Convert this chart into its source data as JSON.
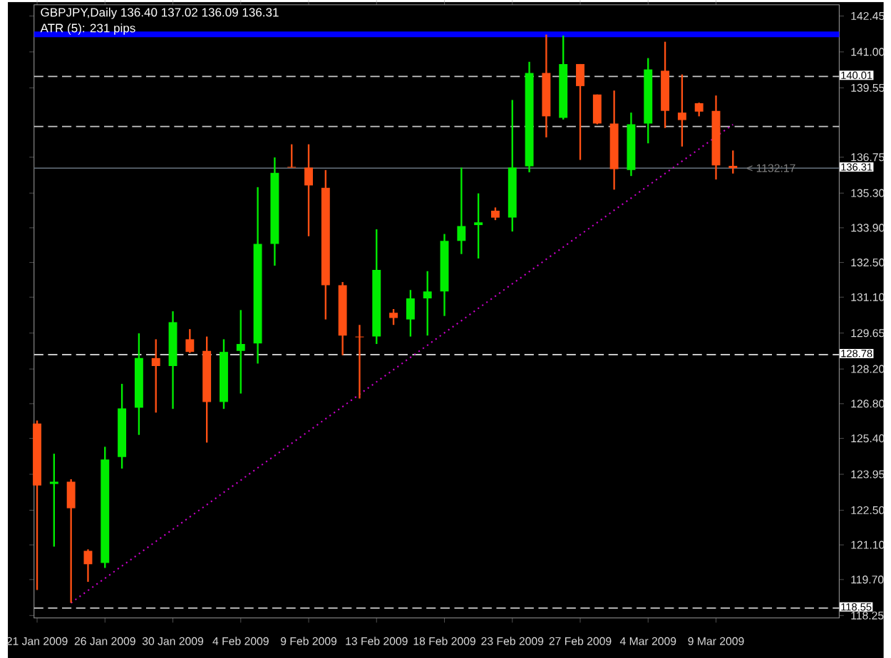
{
  "chart_data": {
    "type": "candlestick",
    "title": "GBPJPY,Daily 136.40 137.02 136.09 136.31",
    "subtitle": "ATR (5): 231 pips",
    "categories": [
      "21 Jan 2009",
      null,
      null,
      null,
      "26 Jan 2009",
      null,
      null,
      null,
      "30 Jan 2009",
      null,
      null,
      null,
      "4 Feb 2009",
      null,
      null,
      null,
      "9 Feb 2009",
      null,
      null,
      null,
      "13 Feb 2009",
      null,
      null,
      null,
      "18 Feb 2009",
      null,
      null,
      null,
      "23 Feb 2009",
      null,
      null,
      null,
      "27 Feb 2009",
      null,
      null,
      null,
      "4 Mar 2009",
      null,
      null,
      null,
      "9 Mar 2009",
      null
    ],
    "ohlc": [
      [
        126.0,
        126.12,
        119.28,
        123.5
      ],
      [
        123.56,
        124.78,
        121.03,
        123.65
      ],
      [
        123.65,
        123.75,
        118.76,
        122.58
      ],
      [
        120.86,
        120.92,
        119.61,
        120.32
      ],
      [
        120.37,
        125.06,
        120.17,
        124.55
      ],
      [
        124.65,
        127.6,
        124.18,
        126.61
      ],
      [
        126.64,
        129.64,
        125.54,
        128.64
      ],
      [
        128.64,
        129.4,
        126.44,
        128.32
      ],
      [
        128.32,
        130.53,
        126.59,
        130.09
      ],
      [
        129.4,
        129.81,
        128.85,
        128.89
      ],
      [
        128.93,
        129.51,
        125.23,
        126.87
      ],
      [
        126.87,
        129.4,
        126.59,
        128.89
      ],
      [
        128.93,
        130.58,
        127.21,
        129.21
      ],
      [
        129.23,
        135.54,
        128.42,
        133.25
      ],
      [
        133.25,
        136.74,
        132.37,
        136.12
      ],
      [
        136.36,
        137.27,
        136.33,
        136.33
      ],
      [
        136.33,
        137.27,
        133.56,
        135.61
      ],
      [
        135.51,
        136.23,
        130.2,
        131.58
      ],
      [
        131.58,
        131.71,
        128.76,
        129.55
      ],
      [
        129.51,
        129.98,
        127.01,
        129.48
      ],
      [
        129.51,
        133.84,
        129.21,
        132.2
      ],
      [
        130.47,
        130.62,
        129.98,
        130.26
      ],
      [
        130.2,
        131.39,
        129.51,
        131.05
      ],
      [
        131.05,
        132.15,
        129.55,
        131.33
      ],
      [
        131.33,
        133.65,
        130.34,
        133.37
      ],
      [
        133.37,
        136.33,
        132.84,
        133.97
      ],
      [
        134.01,
        135.29,
        132.66,
        134.12
      ],
      [
        134.59,
        134.72,
        134.21,
        134.31
      ],
      [
        134.31,
        139.06,
        133.75,
        136.33
      ],
      [
        136.38,
        140.6,
        136.14,
        140.15
      ],
      [
        140.15,
        141.7,
        137.55,
        138.4
      ],
      [
        138.34,
        141.66,
        138.27,
        140.51
      ],
      [
        140.51,
        140.51,
        136.64,
        139.62
      ],
      [
        139.28,
        139.28,
        138.08,
        138.11
      ],
      [
        138.11,
        139.44,
        135.44,
        136.27
      ],
      [
        136.23,
        138.55,
        135.99,
        138.08
      ],
      [
        138.11,
        140.75,
        137.31,
        140.29
      ],
      [
        140.24,
        141.41,
        137.93,
        138.62
      ],
      [
        138.55,
        140.09,
        137.18,
        138.25
      ],
      [
        138.93,
        138.95,
        138.4,
        138.59
      ],
      [
        138.62,
        139.24,
        135.85,
        136.42
      ],
      [
        136.4,
        137.02,
        136.09,
        136.31
      ]
    ],
    "colors": [
      "#ff5014",
      "#00ee00",
      "#ff5014",
      "#ff5014",
      "#00ee00",
      "#00ee00",
      "#00ee00",
      "#ff5014",
      "#00ee00",
      "#ff5014",
      "#ff5014",
      "#00ee00",
      "#00ee00",
      "#00ee00",
      "#00ee00",
      "#ff5014",
      "#ff5014",
      "#ff5014",
      "#ff5014",
      "#ff5014",
      "#00ee00",
      "#ff5014",
      "#00ee00",
      "#00ee00",
      "#00ee00",
      "#00ee00",
      "#00ee00",
      "#ff5014",
      "#00ee00",
      "#00ee00",
      "#ff5014",
      "#00ee00",
      "#ff5014",
      "#ff5014",
      "#ff5014",
      "#00ee00",
      "#00ee00",
      "#ff5014",
      "#ff5014",
      "#ff5014",
      "#ff5014",
      "#ff5014"
    ],
    "series": [
      {
        "type": "line",
        "color": "#cc00cc",
        "line_style": "dotted",
        "values": [
          null,
          null,
          118.76,
          119.26,
          119.75,
          120.25,
          120.74,
          121.24,
          121.73,
          122.23,
          122.72,
          123.22,
          123.71,
          124.21,
          124.7,
          125.2,
          125.69,
          126.19,
          126.68,
          127.18,
          127.68,
          128.17,
          128.67,
          129.16,
          129.66,
          130.15,
          130.65,
          131.14,
          131.64,
          132.13,
          132.63,
          133.12,
          133.62,
          134.11,
          134.61,
          135.1,
          135.6,
          136.09,
          136.59,
          137.08,
          137.58,
          138.07
        ]
      }
    ],
    "ylim": [
      118.15,
      142.9
    ],
    "yticks": [
      142.45,
      {
        "value": 141,
        "label": "141.00"
      },
      139.55,
      136.75,
      {
        "value": 135.3,
        "label": "135.30"
      },
      {
        "value": 133.9,
        "label": "133.90"
      },
      {
        "value": 132.5,
        "label": "132.50"
      },
      {
        "value": 131.1,
        "label": "131.10"
      },
      129.65,
      {
        "value": 128.2,
        "label": "128.20"
      },
      {
        "value": 126.8,
        "label": "126.80"
      },
      {
        "value": 125.4,
        "label": "125.40"
      },
      123.95,
      {
        "value": 122.5,
        "label": "122.50"
      },
      {
        "value": 121.1,
        "label": "121.10"
      },
      {
        "value": 119.7,
        "label": "119.70"
      },
      118.25
    ],
    "ref_lines": [
      {
        "axis": "y",
        "value": 141.71,
        "label": null,
        "color": "#0000ff",
        "line_style": "solid"
      },
      {
        "axis": "y",
        "value": 140.01,
        "label": "140.01",
        "color": "#c8c8c8",
        "line_style": "dashed"
      },
      {
        "axis": "y",
        "value": 137.99,
        "label": null,
        "color": "#c8c8c8",
        "line_style": "dashed"
      },
      {
        "axis": "y",
        "value": 136.31,
        "label": "136.31",
        "color": "#5a646e",
        "line_style": "solid"
      },
      {
        "axis": "y",
        "value": 128.78,
        "label": "128.78",
        "color": "#c8c8c8",
        "line_style": "dashed"
      },
      {
        "axis": "y",
        "value": 118.55,
        "label": "118.55",
        "color": "#c8c8c8",
        "line_style": "dashed"
      }
    ],
    "annotations": [
      "< 1132:17"
    ]
  }
}
